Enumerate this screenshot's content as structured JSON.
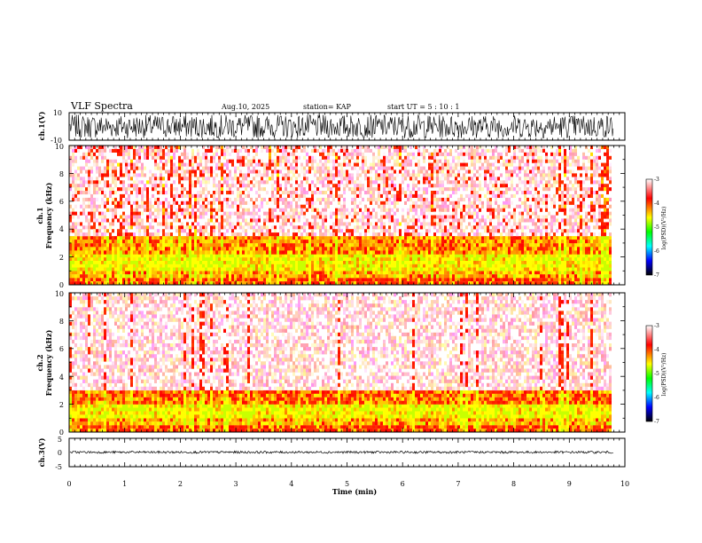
{
  "chart_data": {
    "type": "heatmap",
    "title": "VLF Spectra",
    "header": {
      "date": "Aug.10, 2025",
      "station": "station= KAP",
      "start": "start  UT =   5  : 10 : 1"
    },
    "xlabel": "Time  (min)",
    "xlim": [
      0,
      10
    ],
    "x_ticks": [
      "0",
      "1",
      "2",
      "3",
      "4",
      "5",
      "6",
      "7",
      "8",
      "9",
      "10"
    ],
    "data_extent_min": 9.8,
    "panels": [
      {
        "id": "ch1-waveform",
        "kind": "waveform",
        "ylabel": "ch.1(V)",
        "ylim": [
          -10,
          10
        ],
        "y_ticks": [
          "10",
          "-10"
        ],
        "amplitude_fraction": 0.85
      },
      {
        "id": "ch1-spectrogram",
        "kind": "spectrogram",
        "ylabel_top": "ch.1",
        "ylabel": "Frequency  (kHz)",
        "ylim": [
          0,
          10
        ],
        "y_ticks": [
          "0",
          "2",
          "4",
          "6",
          "8",
          "10"
        ],
        "bands_khz": [
          {
            "from": 0.0,
            "to": 0.5,
            "level": -4.0
          },
          {
            "from": 0.5,
            "to": 1.0,
            "level": -4.3
          },
          {
            "from": 1.0,
            "to": 2.2,
            "level": -4.6
          },
          {
            "from": 2.2,
            "to": 3.5,
            "level": -4.2
          },
          {
            "from": 3.5,
            "to": 10.0,
            "level": -3.4
          }
        ],
        "colorbar": {
          "label": "log(PSD)(V²/Hz)",
          "range": [
            -7,
            -3
          ],
          "ticks": [
            "-3",
            "-4",
            "-5",
            "-6",
            "-7"
          ]
        }
      },
      {
        "id": "ch2-spectrogram",
        "kind": "spectrogram",
        "ylabel_top": "ch.2",
        "ylabel": "Frequency  (kHz)",
        "ylim": [
          0,
          10
        ],
        "y_ticks": [
          "0",
          "2",
          "4",
          "6",
          "8",
          "10"
        ],
        "bands_khz": [
          {
            "from": 0.0,
            "to": 0.5,
            "level": -4.0
          },
          {
            "from": 0.5,
            "to": 1.0,
            "level": -4.3
          },
          {
            "from": 1.0,
            "to": 2.0,
            "level": -4.6
          },
          {
            "from": 2.0,
            "to": 3.0,
            "level": -4.1
          },
          {
            "from": 3.0,
            "to": 10.0,
            "level": -3.3
          }
        ],
        "colorbar": {
          "label": "log(PSD)(V²/Hz)",
          "range": [
            -7,
            -3
          ],
          "ticks": [
            "-3",
            "-4",
            "-5",
            "-6",
            "-7"
          ]
        }
      },
      {
        "id": "ch3-waveform",
        "kind": "waveform",
        "ylabel": "ch.3(V)",
        "ylim": [
          -5,
          5
        ],
        "y_ticks": [
          "5",
          "0",
          "-5"
        ],
        "amplitude_fraction": 0.08,
        "offset_volts": 0.1
      }
    ],
    "colormap": [
      "#ffffff",
      "#ff0000",
      "#ffff00",
      "#00ff00",
      "#00ffff",
      "#0000ff",
      "#000000"
    ]
  }
}
